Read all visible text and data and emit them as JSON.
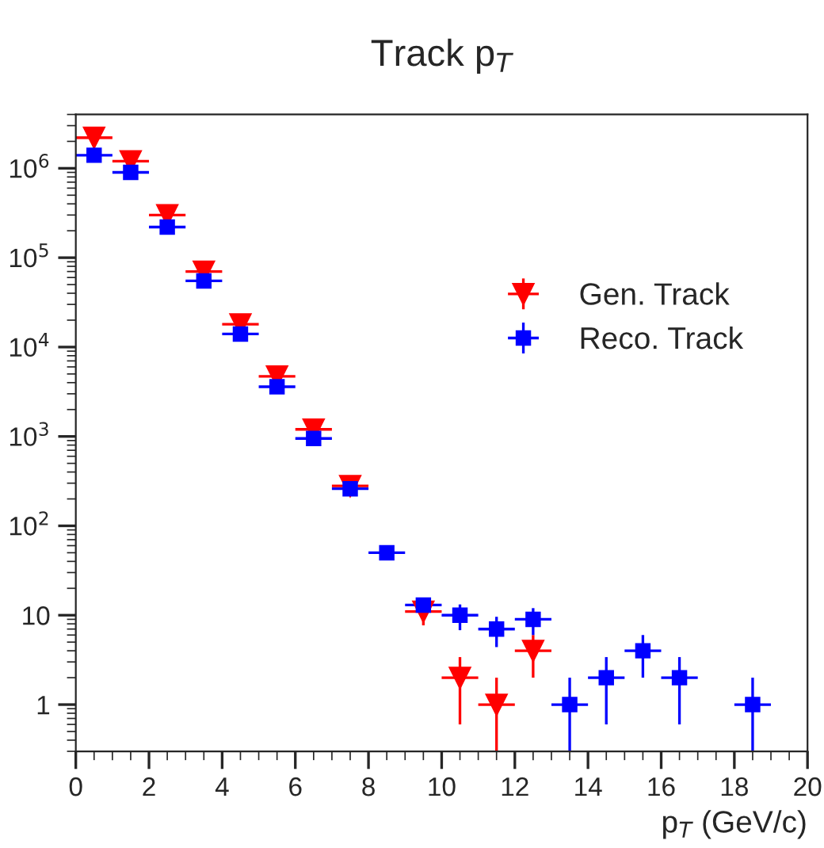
{
  "chart_data": {
    "type": "scatter",
    "title": "Track p$_{T}$",
    "xlabel": "p$_{T}$ (GeV/c)",
    "series": [
      {
        "name": "Gen. Track",
        "color": "#ff0000",
        "marker": "triangle",
        "x": [
          0.5,
          1.5,
          2.5,
          3.5,
          4.5,
          5.5,
          6.5,
          7.5,
          8.5,
          9.5,
          10.5,
          11.5,
          12.5
        ],
        "values": [
          2200000,
          1200000,
          300000,
          70000,
          18000,
          4700,
          1200,
          280,
          null,
          11,
          2,
          1,
          4
        ],
        "xerrors": [
          0.5,
          0.5,
          0.5,
          0.5,
          0.5,
          0.5,
          0.5,
          0.5,
          null,
          0.5,
          0.5,
          0.5,
          0.5
        ],
        "errors": [
          null,
          null,
          null,
          null,
          null,
          null,
          null,
          null,
          null,
          3.3,
          1.4,
          [
            0.3,
            2
          ],
          2
        ]
      },
      {
        "name": "Reco. Track",
        "color": "#0000ff",
        "marker": "square",
        "x": [
          0.5,
          1.5,
          2.5,
          3.5,
          4.5,
          5.5,
          6.5,
          7.5,
          8.5,
          9.5,
          10.5,
          11.5,
          12.5,
          13.5,
          14.5,
          15.5,
          16.5,
          18.5
        ],
        "values": [
          1400000,
          900000,
          220000,
          55000,
          14000,
          3600,
          950,
          260,
          50,
          13,
          10,
          7,
          9,
          1,
          2,
          4,
          2,
          1
        ],
        "xerrors": [
          0.5,
          0.5,
          0.5,
          0.5,
          0.5,
          0.5,
          0.5,
          0.5,
          0.5,
          0.5,
          0.5,
          0.5,
          0.5,
          0.5,
          0.5,
          0.5,
          0.5,
          0.5
        ],
        "errors": [
          null,
          null,
          null,
          null,
          null,
          null,
          null,
          null,
          null,
          null,
          3.2,
          2.6,
          3,
          [
            0.3,
            2
          ],
          1.4,
          2,
          1.4,
          [
            0.3,
            2
          ]
        ]
      }
    ],
    "log": "y",
    "xlim": [
      0,
      20
    ],
    "ylim": [
      0.3,
      4000000
    ],
    "xticks": [
      0,
      2,
      4,
      6,
      8,
      10,
      12,
      14,
      16,
      18,
      20
    ],
    "yticks": [
      1,
      10,
      {
        "value": 100,
        "label": "10$^{2}$"
      },
      {
        "value": 1000,
        "label": "10$^{3}$"
      },
      {
        "value": 10000,
        "label": "10$^{4}$"
      },
      {
        "value": 100000,
        "label": "10$^{5}$"
      },
      {
        "value": 1000000,
        "label": "10$^{6}$"
      }
    ],
    "legend": "top right",
    "grid": false
  }
}
